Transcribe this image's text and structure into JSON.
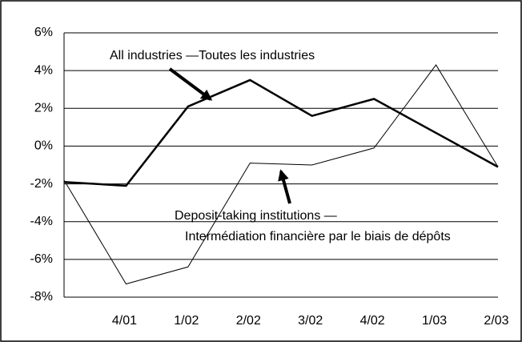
{
  "chart_data": {
    "type": "line",
    "categories": [
      null,
      "4/01",
      "1/02",
      "2/02",
      "3/02",
      "4/02",
      "1/03",
      "2/03"
    ],
    "series": [
      {
        "name": "All industries —Toutes les industries",
        "color": "#000000",
        "line_width": 2.5,
        "values": [
          -1.9,
          -2.1,
          2.1,
          3.5,
          1.6,
          2.5,
          0.7,
          -1.1
        ]
      },
      {
        "name": "Deposit-taking institutions —",
        "subname": "Intermédiation financière par le biais de dépôts",
        "color": "#000000",
        "line_width": 1,
        "values": [
          -1.8,
          -7.3,
          -6.4,
          -0.9,
          -1.0,
          -0.1,
          4.3,
          -1.1
        ]
      }
    ],
    "ylim": [
      -8,
      6
    ],
    "yticks": [
      {
        "value": -8,
        "label": "-8%"
      },
      {
        "value": -6,
        "label": "-6%"
      },
      {
        "value": -4,
        "label": "-4%"
      },
      {
        "value": -2,
        "label": "-2%"
      },
      {
        "value": 0,
        "label": "0%"
      },
      {
        "value": 2,
        "label": "2%"
      },
      {
        "value": 4,
        "label": "4%"
      },
      {
        "value": 6,
        "label": "6%"
      }
    ],
    "grid": true
  }
}
